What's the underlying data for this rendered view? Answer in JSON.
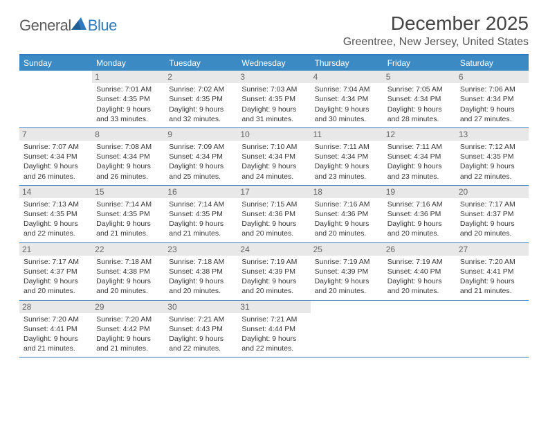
{
  "brand": {
    "name1": "General",
    "name2": "Blue"
  },
  "title": "December 2025",
  "location": "Greentree, New Jersey, United States",
  "accent": "#3b8ac4",
  "rule": "#2f78bd",
  "shade": "#e8e8e8",
  "dayHeaders": [
    "Sunday",
    "Monday",
    "Tuesday",
    "Wednesday",
    "Thursday",
    "Friday",
    "Saturday"
  ],
  "weeks": [
    [
      null,
      {
        "n": "1",
        "sr": "7:01 AM",
        "ss": "4:35 PM",
        "dl": "9 hours and 33 minutes."
      },
      {
        "n": "2",
        "sr": "7:02 AM",
        "ss": "4:35 PM",
        "dl": "9 hours and 32 minutes."
      },
      {
        "n": "3",
        "sr": "7:03 AM",
        "ss": "4:35 PM",
        "dl": "9 hours and 31 minutes."
      },
      {
        "n": "4",
        "sr": "7:04 AM",
        "ss": "4:34 PM",
        "dl": "9 hours and 30 minutes."
      },
      {
        "n": "5",
        "sr": "7:05 AM",
        "ss": "4:34 PM",
        "dl": "9 hours and 28 minutes."
      },
      {
        "n": "6",
        "sr": "7:06 AM",
        "ss": "4:34 PM",
        "dl": "9 hours and 27 minutes."
      }
    ],
    [
      {
        "n": "7",
        "sr": "7:07 AM",
        "ss": "4:34 PM",
        "dl": "9 hours and 26 minutes."
      },
      {
        "n": "8",
        "sr": "7:08 AM",
        "ss": "4:34 PM",
        "dl": "9 hours and 26 minutes."
      },
      {
        "n": "9",
        "sr": "7:09 AM",
        "ss": "4:34 PM",
        "dl": "9 hours and 25 minutes."
      },
      {
        "n": "10",
        "sr": "7:10 AM",
        "ss": "4:34 PM",
        "dl": "9 hours and 24 minutes."
      },
      {
        "n": "11",
        "sr": "7:11 AM",
        "ss": "4:34 PM",
        "dl": "9 hours and 23 minutes."
      },
      {
        "n": "12",
        "sr": "7:11 AM",
        "ss": "4:34 PM",
        "dl": "9 hours and 23 minutes."
      },
      {
        "n": "13",
        "sr": "7:12 AM",
        "ss": "4:35 PM",
        "dl": "9 hours and 22 minutes."
      }
    ],
    [
      {
        "n": "14",
        "sr": "7:13 AM",
        "ss": "4:35 PM",
        "dl": "9 hours and 22 minutes."
      },
      {
        "n": "15",
        "sr": "7:14 AM",
        "ss": "4:35 PM",
        "dl": "9 hours and 21 minutes."
      },
      {
        "n": "16",
        "sr": "7:14 AM",
        "ss": "4:35 PM",
        "dl": "9 hours and 21 minutes."
      },
      {
        "n": "17",
        "sr": "7:15 AM",
        "ss": "4:36 PM",
        "dl": "9 hours and 20 minutes."
      },
      {
        "n": "18",
        "sr": "7:16 AM",
        "ss": "4:36 PM",
        "dl": "9 hours and 20 minutes."
      },
      {
        "n": "19",
        "sr": "7:16 AM",
        "ss": "4:36 PM",
        "dl": "9 hours and 20 minutes."
      },
      {
        "n": "20",
        "sr": "7:17 AM",
        "ss": "4:37 PM",
        "dl": "9 hours and 20 minutes."
      }
    ],
    [
      {
        "n": "21",
        "sr": "7:17 AM",
        "ss": "4:37 PM",
        "dl": "9 hours and 20 minutes."
      },
      {
        "n": "22",
        "sr": "7:18 AM",
        "ss": "4:38 PM",
        "dl": "9 hours and 20 minutes."
      },
      {
        "n": "23",
        "sr": "7:18 AM",
        "ss": "4:38 PM",
        "dl": "9 hours and 20 minutes."
      },
      {
        "n": "24",
        "sr": "7:19 AM",
        "ss": "4:39 PM",
        "dl": "9 hours and 20 minutes."
      },
      {
        "n": "25",
        "sr": "7:19 AM",
        "ss": "4:39 PM",
        "dl": "9 hours and 20 minutes."
      },
      {
        "n": "26",
        "sr": "7:19 AM",
        "ss": "4:40 PM",
        "dl": "9 hours and 20 minutes."
      },
      {
        "n": "27",
        "sr": "7:20 AM",
        "ss": "4:41 PM",
        "dl": "9 hours and 21 minutes."
      }
    ],
    [
      {
        "n": "28",
        "sr": "7:20 AM",
        "ss": "4:41 PM",
        "dl": "9 hours and 21 minutes."
      },
      {
        "n": "29",
        "sr": "7:20 AM",
        "ss": "4:42 PM",
        "dl": "9 hours and 21 minutes."
      },
      {
        "n": "30",
        "sr": "7:21 AM",
        "ss": "4:43 PM",
        "dl": "9 hours and 22 minutes."
      },
      {
        "n": "31",
        "sr": "7:21 AM",
        "ss": "4:44 PM",
        "dl": "9 hours and 22 minutes."
      },
      null,
      null,
      null
    ]
  ],
  "labels": {
    "sunrise": "Sunrise: ",
    "sunset": "Sunset: ",
    "daylight": "Daylight: "
  }
}
